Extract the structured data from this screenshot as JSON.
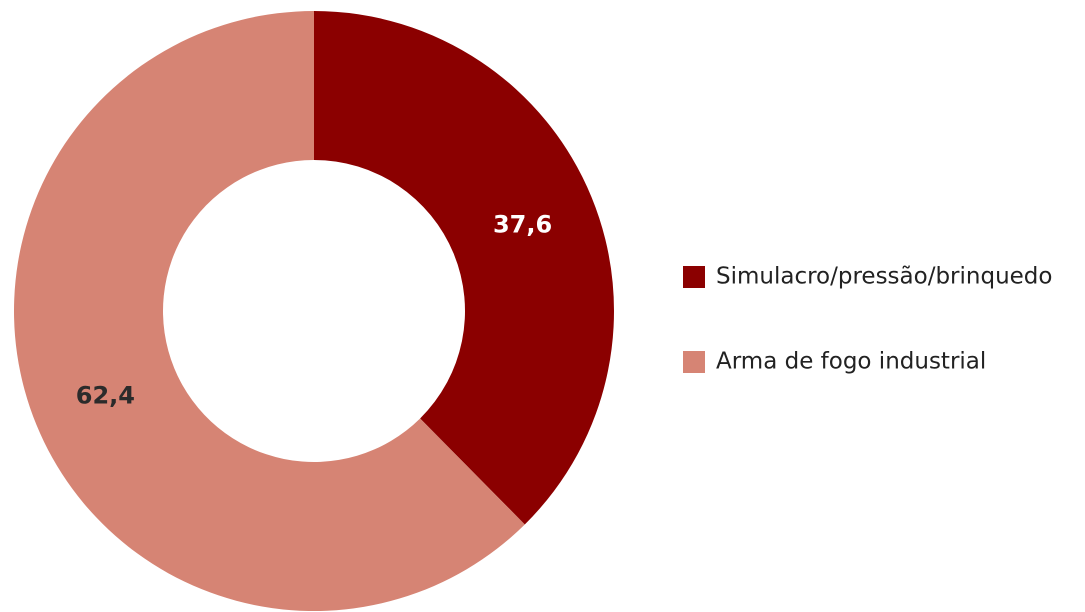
{
  "chart_data": {
    "type": "donut",
    "categories": [
      "Simulacro/pressão/brinquedo",
      "Arma de fogo industrial"
    ],
    "values": [
      37.6,
      62.4
    ],
    "value_labels": [
      "37,6",
      "62,4"
    ],
    "colors": [
      "#8b0000",
      "#d68474"
    ],
    "label_colors": [
      "#ffffff",
      "#2b2b2b"
    ],
    "legend": "right"
  }
}
